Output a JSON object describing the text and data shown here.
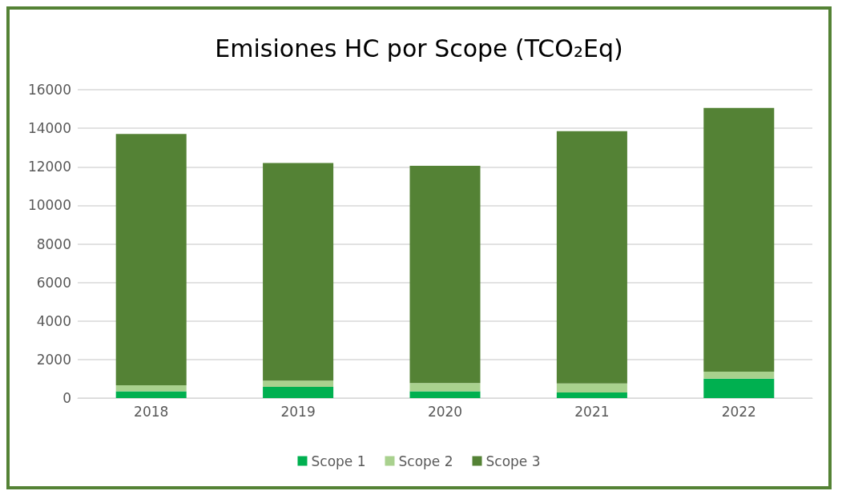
{
  "chart_data": {
    "type": "bar",
    "title": "Emisiones HC por Scope (TCO₂Eq)",
    "categories": [
      "2018",
      "2019",
      "2020",
      "2021",
      "2022"
    ],
    "stacked": true,
    "series": [
      {
        "name": "Scope 1",
        "color": "#00b050",
        "values": [
          350,
          580,
          350,
          290,
          1010
        ]
      },
      {
        "name": "Scope 2",
        "color": "#a9d18e",
        "values": [
          310,
          320,
          430,
          470,
          360
        ]
      },
      {
        "name": "Scope 3",
        "color": "#548235",
        "values": [
          13040,
          11300,
          11270,
          13090,
          13680
        ]
      }
    ],
    "ylim": [
      0,
      16000
    ],
    "yticks": [
      0,
      2000,
      4000,
      6000,
      8000,
      10000,
      12000,
      14000,
      16000
    ],
    "grid": "y",
    "legend": "bottom"
  }
}
